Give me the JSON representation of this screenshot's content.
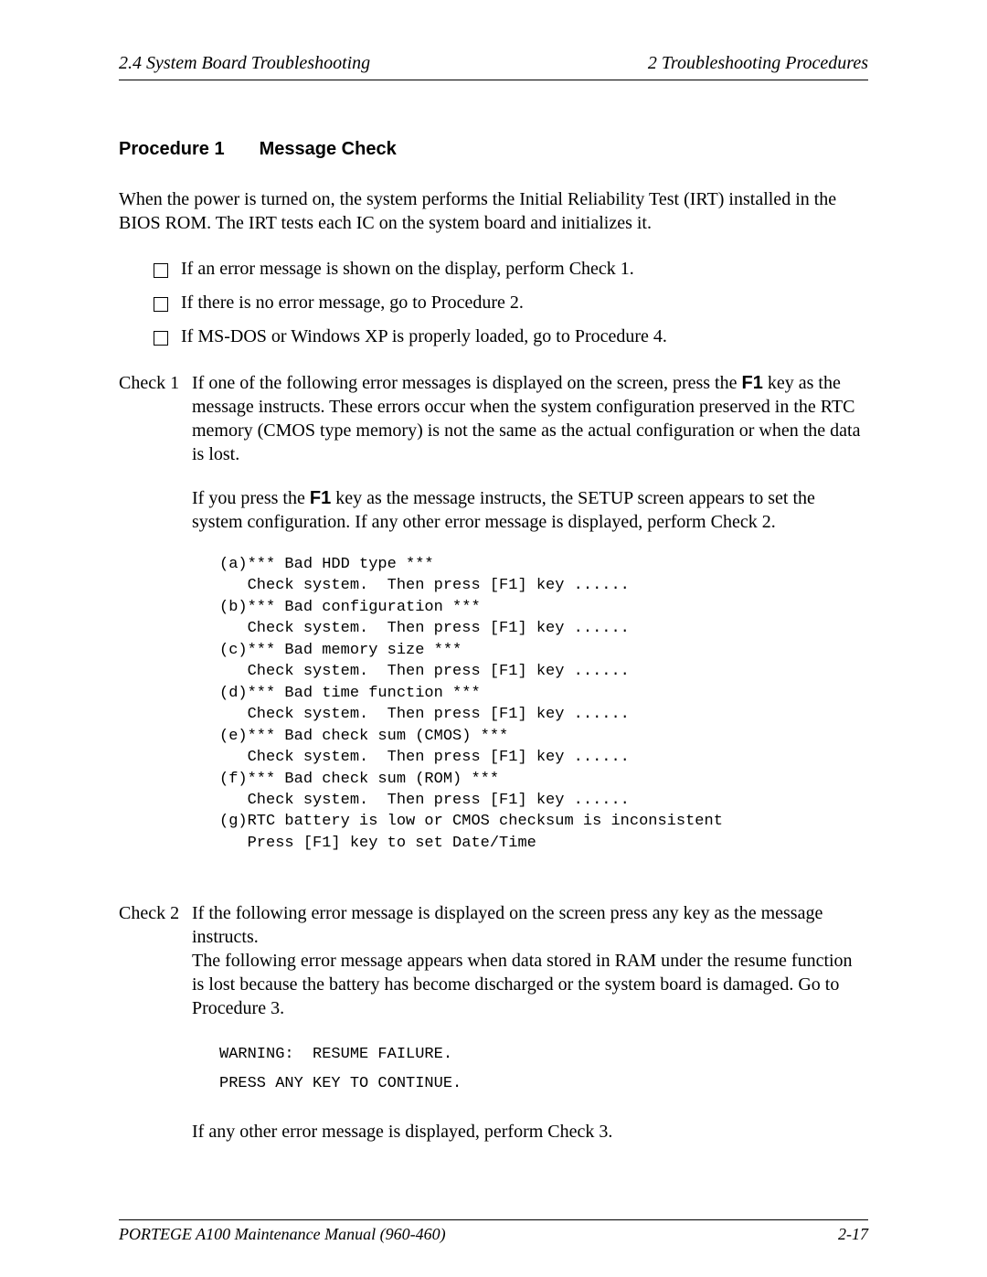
{
  "header": {
    "left": "2.4  System Board Troubleshooting",
    "right": "2  Troubleshooting Procedures"
  },
  "procedure": {
    "label": "Procedure 1",
    "title": "Message Check"
  },
  "intro": "When the power is turned on, the system performs the Initial Reliability Test (IRT) installed in the BIOS ROM. The IRT tests each IC on the system board and initializes it.",
  "bullets": [
    "If an error message is shown on the display, perform Check 1.",
    "If there is no error message, go to Procedure 2.",
    "If MS-DOS or Windows XP is properly loaded, go to Procedure 4."
  ],
  "check1": {
    "label": "Check 1",
    "p1_a": "If one of the following error messages is displayed on the screen, press the ",
    "p1_key": "F1",
    "p1_b": " key as the message instructs. These errors occur when the system configuration preserved in the RTC memory (CMOS type memory) is not the same as the actual configuration or when the data is lost.",
    "p2_a": "If you press the ",
    "p2_key": "F1",
    "p2_b": " key as the message instructs, the SETUP screen appears to set the system configuration. If any other error message is displayed, perform Check 2.",
    "code": "(a)*** Bad HDD type ***\n   Check system.  Then press [F1] key ......\n(b)*** Bad configuration ***\n   Check system.  Then press [F1] key ......\n(c)*** Bad memory size ***\n   Check system.  Then press [F1] key ......\n(d)*** Bad time function ***\n   Check system.  Then press [F1] key ......\n(e)*** Bad check sum (CMOS) ***\n   Check system.  Then press [F1] key ......\n(f)*** Bad check sum (ROM) ***\n   Check system.  Then press [F1] key ......\n(g)RTC battery is low or CMOS checksum is inconsistent\n   Press [F1] key to set Date/Time"
  },
  "check2": {
    "label": "Check 2",
    "p1": "If the following error message is displayed on the screen press any key as the message instructs.",
    "p2": "The following error message appears when data stored in RAM under the resume function is lost because the battery has become discharged or the system board is damaged. Go to Procedure 3.",
    "code": "WARNING:  RESUME FAILURE.\nPRESS ANY KEY TO CONTINUE.",
    "p3": "If any other error message is displayed, perform Check 3."
  },
  "footer": {
    "left": "PORTEGE A100 Maintenance Manual (960-460)",
    "right": "2-17"
  }
}
